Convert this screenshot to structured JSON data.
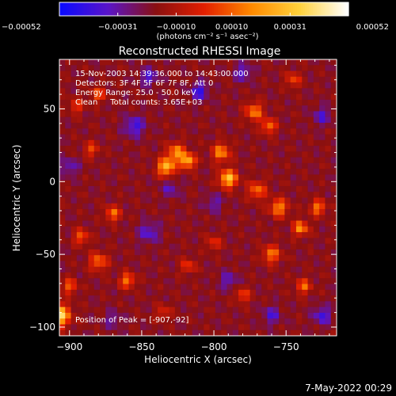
{
  "chart_data": {
    "type": "heatmap",
    "title": "Reconstructed RHESSI Image",
    "xlabel": "Heliocentric X (arcsec)",
    "ylabel": "Heliocentric Y (arcsec)",
    "xlim": [
      -907,
      -715
    ],
    "ylim": [
      -106,
      84
    ],
    "x_ticks": [
      -900,
      -850,
      -800,
      -750
    ],
    "y_ticks": [
      50,
      0,
      -50,
      -100
    ],
    "x_tick_labels": [
      "−900",
      "−850",
      "−800",
      "−750"
    ],
    "y_tick_labels": [
      "50",
      "0",
      "−50",
      "−100"
    ],
    "colorbar": {
      "ticks": [
        -0.00052,
        -0.00031,
        -0.0001,
        0.0001,
        0.00031,
        0.00052
      ],
      "tick_labels": [
        "−0.00052",
        "−0.00031",
        "−0.00010",
        "0.00010",
        "0.00031",
        "0.00052"
      ],
      "range": [
        -0.00052,
        0.00052
      ],
      "unit_label": "(photons cm⁻² s⁻¹ asec⁻²)",
      "colors": [
        "#0a0aff",
        "#5a14c8",
        "#8a1010",
        "#e21e00",
        "#ff8a00",
        "#ffd23c",
        "#ffffff"
      ]
    },
    "annotations": [
      "15-Nov-2003 14:39:36.000 to 14:43:00.000",
      "Detectors: 3F 4F 5F 6F 7F 8F, Att 0",
      "Energy Range: 25.0 - 50.0 keV",
      "Clean     Total counts: 3.65E+03"
    ],
    "peak_label": "Position of Peak = [-907,-92]",
    "blobs": [
      {
        "x": -907,
        "y": -92,
        "v": 0.00052,
        "r": 7
      },
      {
        "x": -833,
        "y": 10,
        "v": 0.00042,
        "r": 6
      },
      {
        "x": -818,
        "y": 14,
        "v": 0.0004,
        "r": 5
      },
      {
        "x": -826,
        "y": 20,
        "v": 0.00032,
        "r": 6
      },
      {
        "x": -790,
        "y": 2,
        "v": 0.00044,
        "r": 6
      },
      {
        "x": -795,
        "y": 20,
        "v": 0.0003,
        "r": 6
      },
      {
        "x": -772,
        "y": 48,
        "v": 0.00028,
        "r": 6
      },
      {
        "x": -762,
        "y": 38,
        "v": 0.00026,
        "r": 5
      },
      {
        "x": -770,
        "y": -6,
        "v": 0.00025,
        "r": 6
      },
      {
        "x": -755,
        "y": -18,
        "v": 0.0003,
        "r": 6
      },
      {
        "x": -740,
        "y": -32,
        "v": 0.00032,
        "r": 5
      },
      {
        "x": -728,
        "y": -18,
        "v": 0.00028,
        "r": 5
      },
      {
        "x": -760,
        "y": -50,
        "v": 0.00026,
        "r": 6
      },
      {
        "x": -738,
        "y": -72,
        "v": 0.00024,
        "r": 5
      },
      {
        "x": -780,
        "y": -78,
        "v": 0.00018,
        "r": 5
      },
      {
        "x": -870,
        "y": -22,
        "v": 0.00026,
        "r": 5
      },
      {
        "x": -892,
        "y": -38,
        "v": 0.00022,
        "r": 5
      },
      {
        "x": -880,
        "y": -55,
        "v": 0.00025,
        "r": 6
      },
      {
        "x": -860,
        "y": -68,
        "v": 0.00028,
        "r": 5
      },
      {
        "x": -900,
        "y": -72,
        "v": 0.00022,
        "r": 5
      },
      {
        "x": -880,
        "y": 60,
        "v": 0.0002,
        "r": 5
      },
      {
        "x": -895,
        "y": 52,
        "v": 0.00016,
        "r": 5
      },
      {
        "x": -885,
        "y": 22,
        "v": 0.00017,
        "r": 5
      },
      {
        "x": -745,
        "y": 70,
        "v": 0.00018,
        "r": 5
      },
      {
        "x": -818,
        "y": -58,
        "v": 0.00016,
        "r": 5
      },
      {
        "x": -800,
        "y": -42,
        "v": 0.00014,
        "r": 5
      },
      {
        "x": -835,
        "y": -90,
        "v": 0.00012,
        "r": 5
      },
      {
        "x": -855,
        "y": 38,
        "v": -0.00028,
        "r": 7
      },
      {
        "x": -845,
        "y": 72,
        "v": -0.00026,
        "r": 6
      },
      {
        "x": -810,
        "y": 62,
        "v": -0.0003,
        "r": 6
      },
      {
        "x": -780,
        "y": 75,
        "v": -0.00024,
        "r": 6
      },
      {
        "x": -900,
        "y": 10,
        "v": -0.00022,
        "r": 6
      },
      {
        "x": -845,
        "y": -35,
        "v": -0.00024,
        "r": 7
      },
      {
        "x": -830,
        "y": -5,
        "v": -0.0002,
        "r": 6
      },
      {
        "x": -800,
        "y": -15,
        "v": -0.0002,
        "r": 6
      },
      {
        "x": -790,
        "y": -68,
        "v": -0.00022,
        "r": 6
      },
      {
        "x": -760,
        "y": -92,
        "v": -0.00024,
        "r": 6
      },
      {
        "x": -725,
        "y": -92,
        "v": -0.00028,
        "r": 6
      },
      {
        "x": -725,
        "y": 45,
        "v": -0.00024,
        "r": 6
      },
      {
        "x": -870,
        "y": -95,
        "v": -0.00018,
        "r": 6
      }
    ]
  },
  "footer": {
    "date": "7-May-2022 00:29"
  }
}
